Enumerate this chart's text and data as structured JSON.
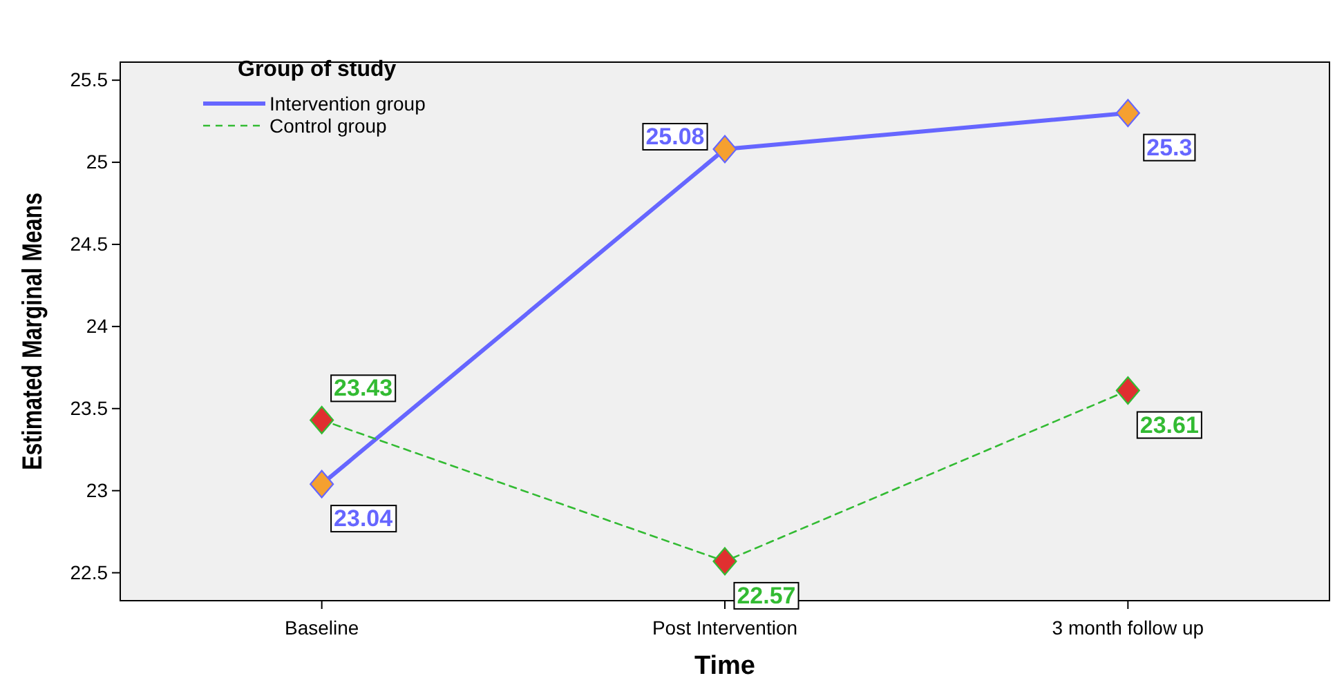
{
  "chart_data": {
    "type": "line",
    "xlabel": "Time",
    "ylabel": "Estimated Marginal Means",
    "legend_title": "Group of study",
    "categories": [
      "Baseline",
      "Post Intervention",
      "3 month follow up"
    ],
    "series": [
      {
        "name": "Intervention group",
        "color": "#6666ff",
        "colors": [
          "#f5a030",
          "#f5a030",
          "#f5a030"
        ],
        "values": [
          23.04,
          25.08,
          25.3
        ],
        "line_style": "solid"
      },
      {
        "name": "Control group",
        "color": "#33bb33",
        "colors": [
          "#e03030",
          "#e03030",
          "#e03030"
        ],
        "values": [
          23.43,
          22.57,
          23.61
        ],
        "line_style": "dashed"
      }
    ],
    "ylim": [
      22.33,
      25.61
    ],
    "yticks": [
      22.5,
      23,
      23.5,
      24,
      24.5,
      25,
      25.5
    ],
    "marker": "diamond",
    "data_labels": true,
    "legend": "top left",
    "grid": false
  }
}
